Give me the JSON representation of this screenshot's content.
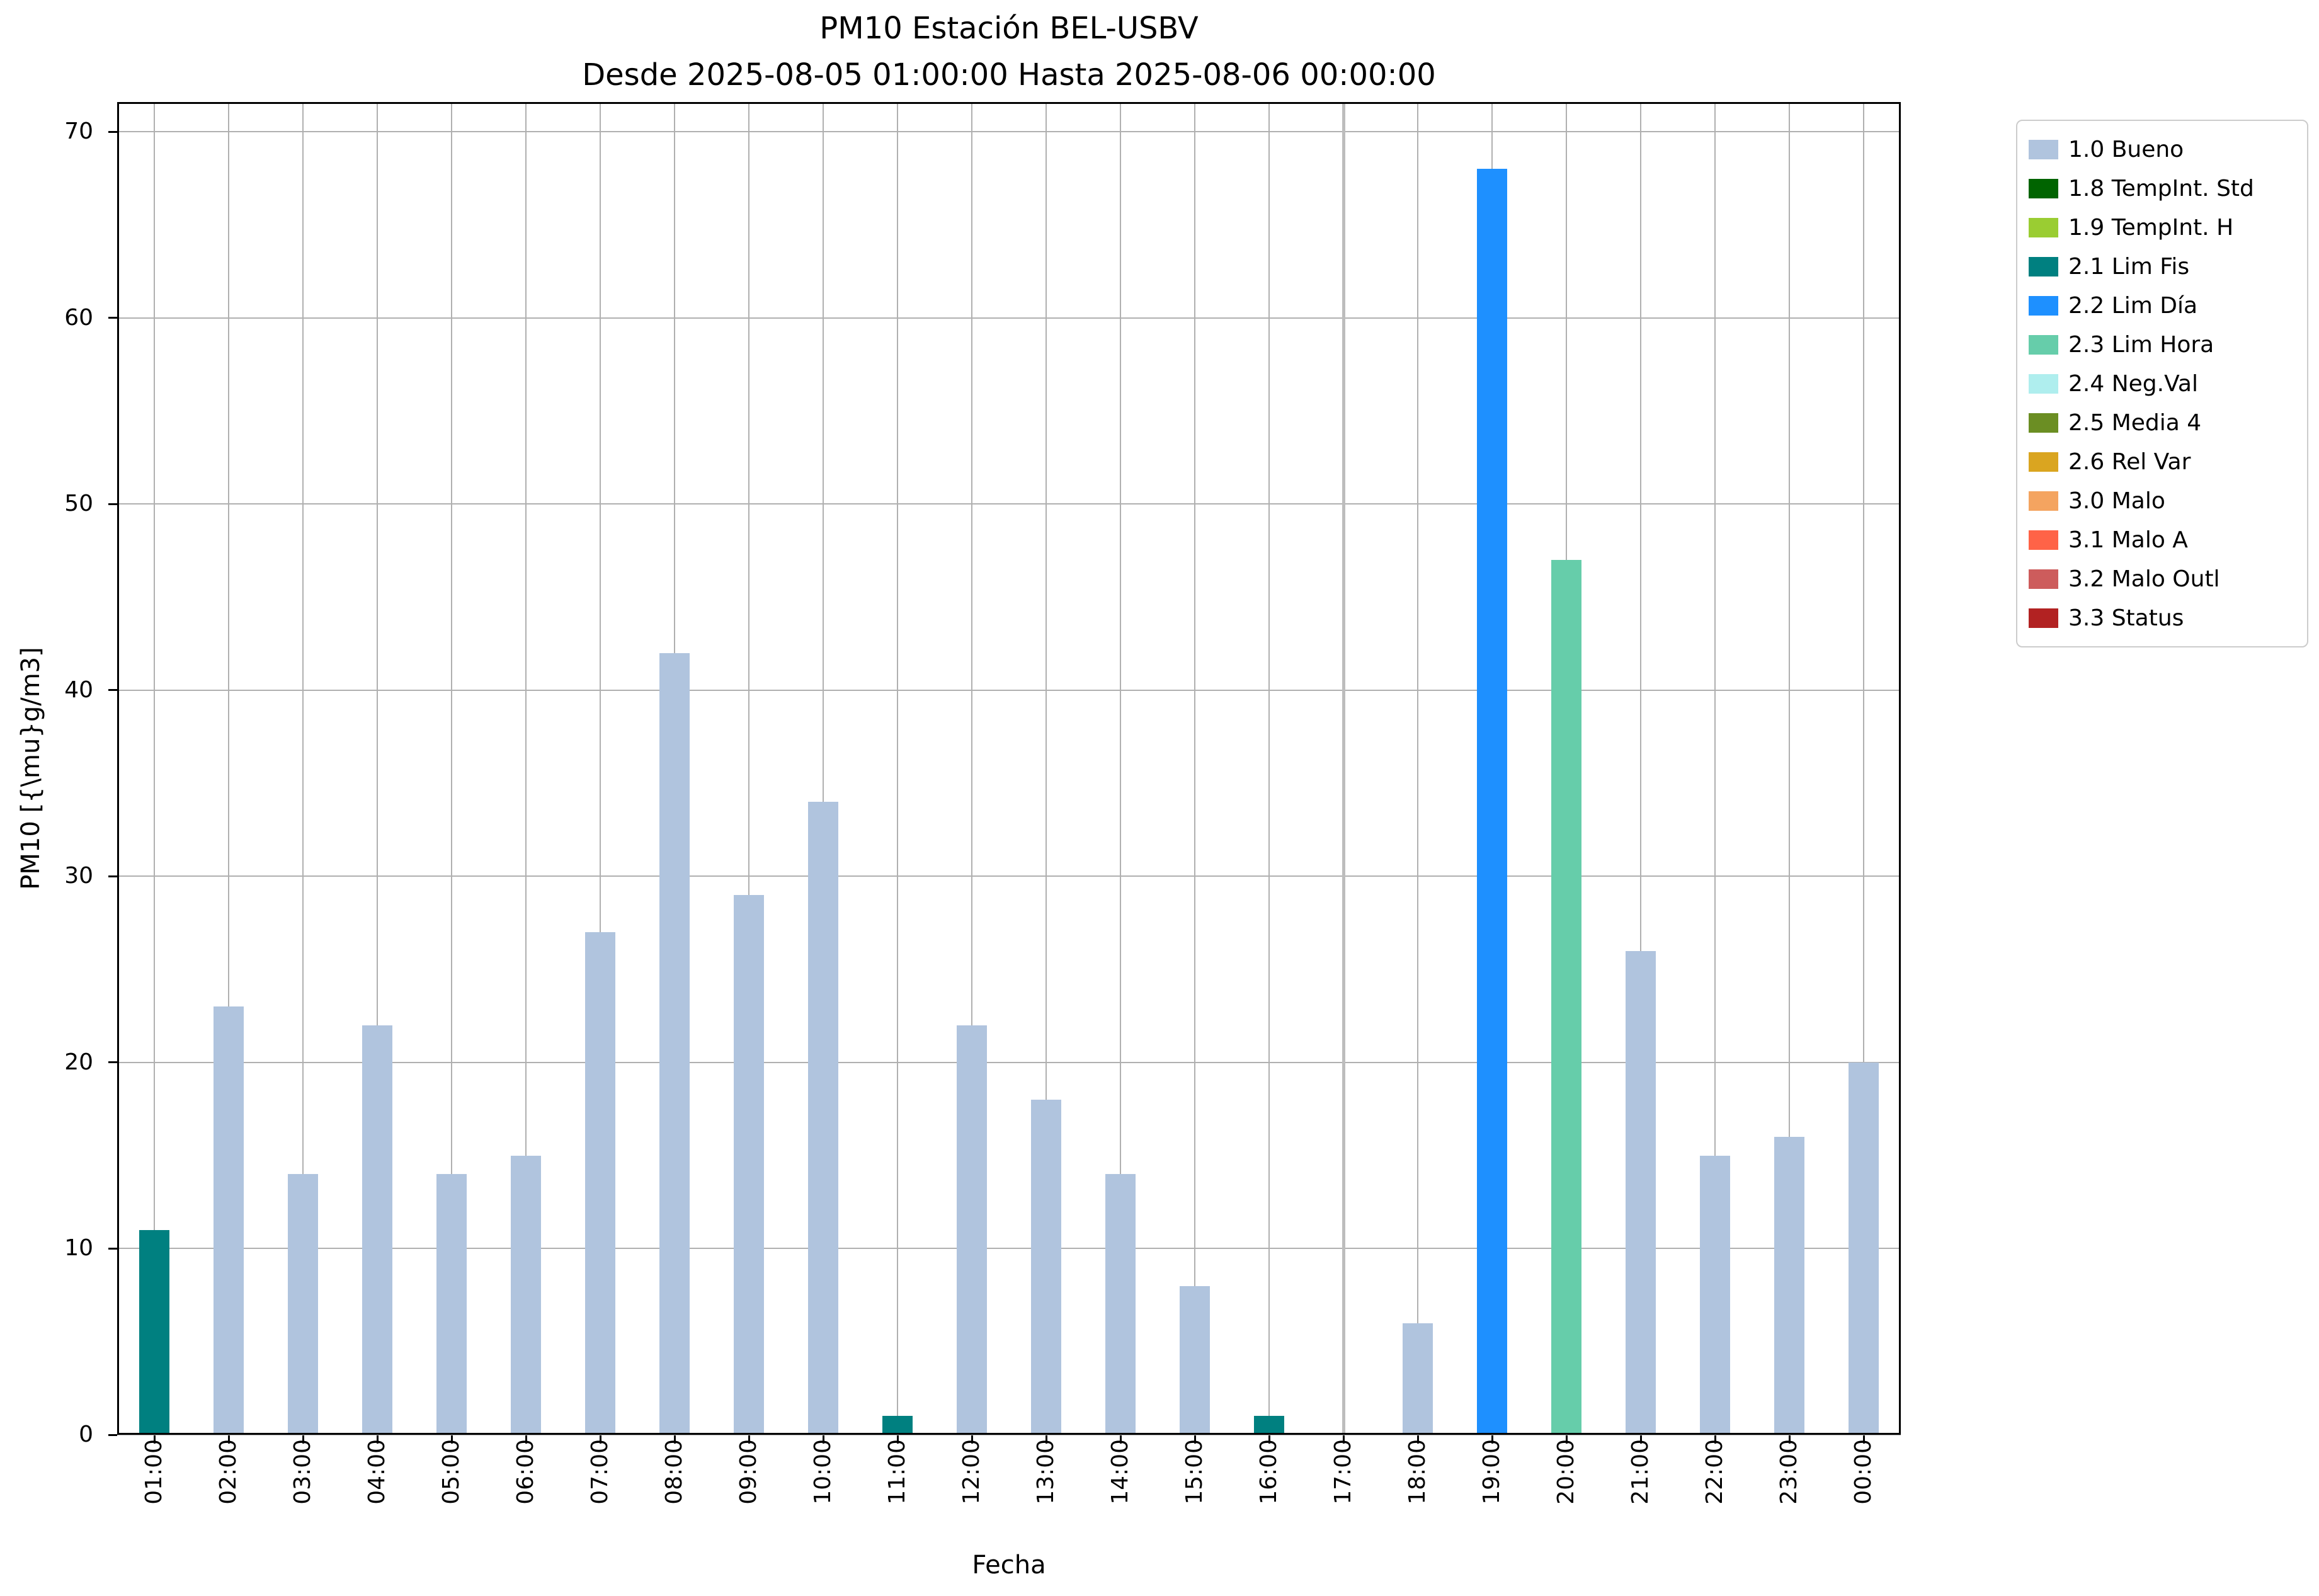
{
  "chart_data": {
    "type": "bar",
    "title": "PM10 Estación BEL-USBV",
    "subtitle": "Desde 2025-08-05 01:00:00 Hasta 2025-08-06 00:00:00",
    "xlabel": "Fecha",
    "ylabel": "PM10 [{\\mu}g/m3]",
    "ylim": [
      0,
      71.6
    ],
    "yticks": [
      0,
      10,
      20,
      30,
      40,
      50,
      60,
      70
    ],
    "grid": true,
    "legend_position": "outside-right-top",
    "categories": [
      "01:00",
      "02:00",
      "03:00",
      "04:00",
      "05:00",
      "06:00",
      "07:00",
      "08:00",
      "09:00",
      "10:00",
      "11:00",
      "12:00",
      "13:00",
      "14:00",
      "15:00",
      "16:00",
      "17:00",
      "18:00",
      "19:00",
      "20:00",
      "21:00",
      "22:00",
      "23:00",
      "00:00"
    ],
    "values": [
      11,
      23,
      14,
      22,
      14,
      15,
      27,
      42,
      29,
      34,
      1,
      22,
      18,
      14,
      8,
      1,
      0,
      6,
      68,
      47,
      26,
      15,
      16,
      20
    ],
    "statuses": [
      "2.1",
      "1.0",
      "1.0",
      "1.0",
      "1.0",
      "1.0",
      "1.0",
      "1.0",
      "1.0",
      "1.0",
      "2.1",
      "1.0",
      "1.0",
      "1.0",
      "1.0",
      "2.1",
      "none",
      "1.0",
      "2.2",
      "2.3",
      "1.0",
      "1.0",
      "1.0",
      "1.0"
    ],
    "vline_category": "17:00",
    "palette": {
      "1.0": "#B0C4DE",
      "1.8": "#006400",
      "1.9": "#9ACD32",
      "2.1": "#008080",
      "2.2": "#1E90FF",
      "2.3": "#66CDAA",
      "2.4": "#AFEEEE",
      "2.5": "#6B8E23",
      "2.6": "#DAA520",
      "3.0": "#F4A460",
      "3.1": "#FF6347",
      "3.2": "#CD5C5C",
      "3.3": "#B22222"
    },
    "legend": [
      {
        "code": "1.0",
        "label": "1.0 Bueno"
      },
      {
        "code": "1.8",
        "label": "1.8 TempInt. Std"
      },
      {
        "code": "1.9",
        "label": "1.9 TempInt. H"
      },
      {
        "code": "2.1",
        "label": "2.1 Lim Fis"
      },
      {
        "code": "2.2",
        "label": "2.2 Lim Día"
      },
      {
        "code": "2.3",
        "label": "2.3 Lim Hora"
      },
      {
        "code": "2.4",
        "label": "2.4 Neg.Val"
      },
      {
        "code": "2.5",
        "label": "2.5 Media 4"
      },
      {
        "code": "2.6",
        "label": "2.6 Rel Var"
      },
      {
        "code": "3.0",
        "label": "3.0 Malo"
      },
      {
        "code": "3.1",
        "label": "3.1 Malo A"
      },
      {
        "code": "3.2",
        "label": "3.2 Malo Outl"
      },
      {
        "code": "3.3",
        "label": "3.3 Status"
      }
    ]
  }
}
